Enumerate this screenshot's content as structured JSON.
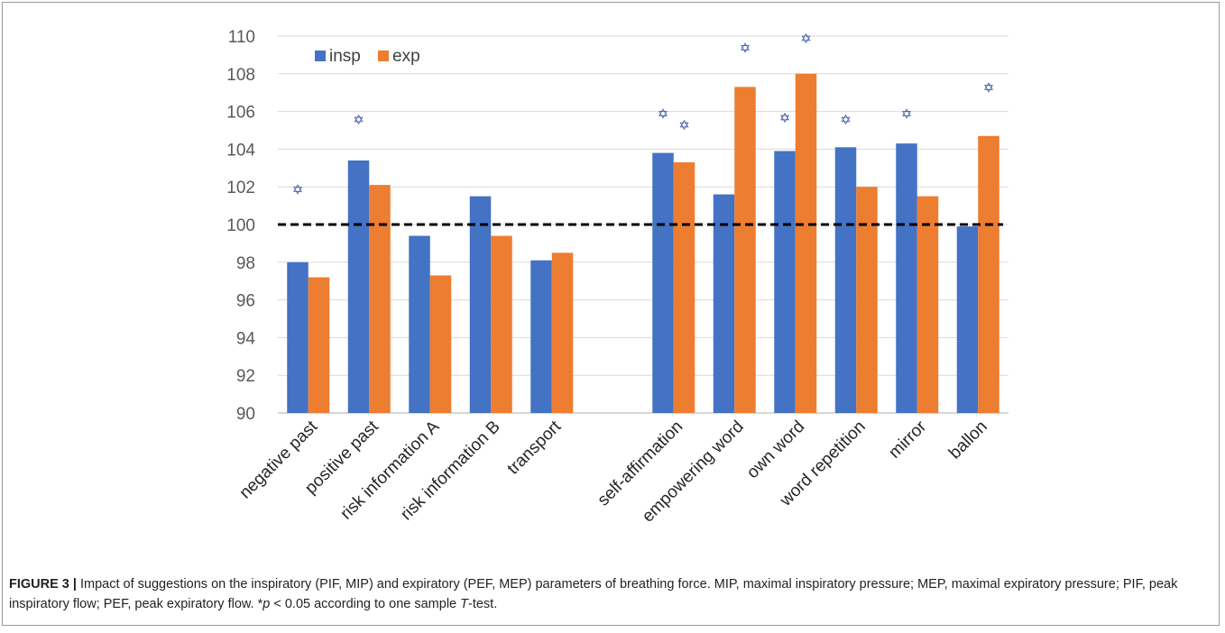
{
  "figure": {
    "label": "FIGURE 3 |",
    "caption_main": " Impact of suggestions on the inspiratory (PIF, MIP) and expiratory (PEF, MEP) parameters of breathing force. MIP, maximal inspiratory pressure; MEP, maximal expiratory pressure; PIF, peak inspiratory flow; PEF, peak expiratory flow. *",
    "caption_p": "p",
    "caption_mid": " < 0.05 according to one sample ",
    "caption_t": "T",
    "caption_end": "-test."
  },
  "chart_data": {
    "type": "bar",
    "title": "",
    "xlabel": "",
    "ylabel": "",
    "ylim": [
      90,
      110
    ],
    "yticks": [
      90,
      92,
      94,
      96,
      98,
      100,
      102,
      104,
      106,
      108,
      110
    ],
    "grid": true,
    "legend": "top-left",
    "reference_line": {
      "y": 100,
      "style": "dashed",
      "color": "#000000"
    },
    "categories": [
      "negative past",
      "positive past",
      "risk information A",
      "risk information B",
      "transport",
      "",
      "self-affirmation",
      "empowering word",
      "own word",
      "word repetition",
      "mirror",
      "ballon"
    ],
    "series": [
      {
        "name": "insp",
        "color": "#4472c4",
        "values": [
          98.0,
          103.4,
          99.4,
          101.5,
          98.1,
          null,
          103.8,
          101.6,
          103.9,
          104.1,
          104.3,
          99.9
        ]
      },
      {
        "name": "exp",
        "color": "#ed7d31",
        "values": [
          97.2,
          102.1,
          97.3,
          99.4,
          98.5,
          null,
          103.3,
          107.3,
          108.0,
          102.0,
          101.5,
          104.7
        ]
      }
    ],
    "significance_marker": "✡",
    "significance_color": "#2e4fa0",
    "significance": [
      {
        "category": 0,
        "series": 0,
        "y": 101.9
      },
      {
        "category": 1,
        "series": 0,
        "y": 105.6
      },
      {
        "category": 6,
        "series": 0,
        "y": 105.9
      },
      {
        "category": 6,
        "series": 1,
        "y": 105.3
      },
      {
        "category": 7,
        "series": 1,
        "y": 109.4
      },
      {
        "category": 8,
        "series": 0,
        "y": 105.7
      },
      {
        "category": 8,
        "series": 1,
        "y": 109.9
      },
      {
        "category": 9,
        "series": 0,
        "y": 105.6
      },
      {
        "category": 10,
        "series": 0,
        "y": 105.9
      },
      {
        "category": 11,
        "series": 1,
        "y": 107.3
      }
    ]
  }
}
